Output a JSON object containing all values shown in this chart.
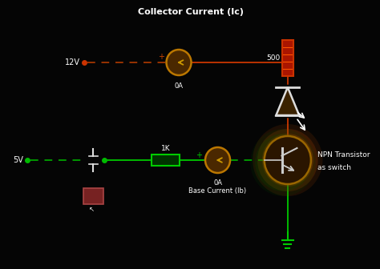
{
  "bg_color": "#050505",
  "collector_label": "Collector Current (Ic)",
  "base_label": "Base Current (Ib)",
  "npn_label1": "NPN Transistor",
  "npn_label2": "as switch",
  "v12": "12V",
  "v5": "5V",
  "oa_top": "0A",
  "oa_bot": "0A",
  "r500": "500",
  "r1k": "1K",
  "wire_red": "#bb3300",
  "wire_red_dash": "#993300",
  "wire_green": "#00bb00",
  "wire_green_dash": "#009900",
  "ammeter_bg": "#4a2800",
  "ammeter_border": "#bb7700",
  "ammeter_arrow": "#cc9900",
  "res_red_fill": "#aa1500",
  "res_red_border": "#cc3300",
  "res_red_line": "#ff5500",
  "res_green_fill": "#003300",
  "res_green_border": "#00cc00",
  "led_fill": "#3a2200",
  "led_border": "#dddddd",
  "led_arrow": "#ffffff",
  "trans_orange": "#cc5500",
  "trans_green": "#005500",
  "trans_symbol": "#cccccc",
  "ground_color": "#00cc00",
  "text_white": "#ffffff",
  "text_green": "#00cc00",
  "btn_fill": "#772222",
  "btn_border": "#aa4444",
  "switch_color": "#dddddd",
  "plus_red": "#cc4400",
  "plus_green": "#00cc00",
  "dot_red": "#cc3300",
  "dot_green": "#00bb00"
}
